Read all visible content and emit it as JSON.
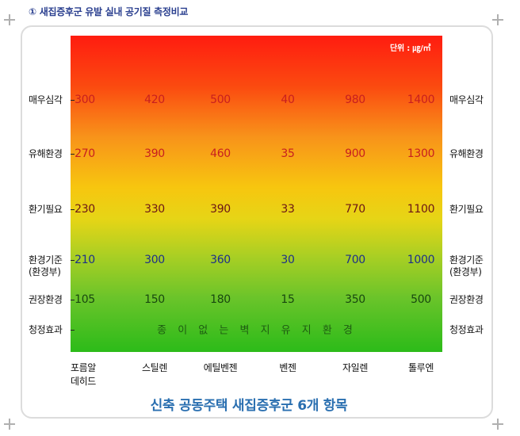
{
  "heading": "① 새집증후군 유발 실내 공기질 측정비교",
  "chart_data": {
    "type": "table",
    "unit": "단위 : ㎍/㎥",
    "title": "신축 공동주택 새집증후군 6개 항목",
    "categories": [
      "포름알\n데히드",
      "스틸렌",
      "에틸벤젠",
      "벤젠",
      "자일렌",
      "톨루엔"
    ],
    "rows": [
      {
        "label": "매우심각",
        "color": "#c81f1f",
        "values": [
          "300",
          "420",
          "500",
          "40",
          "980",
          "1400"
        ]
      },
      {
        "label": "유해환경",
        "color": "#c81f1f",
        "values": [
          "270",
          "390",
          "460",
          "35",
          "900",
          "1300"
        ]
      },
      {
        "label": "환기필요",
        "color": "#6b1616",
        "values": [
          "230",
          "330",
          "390",
          "33",
          "770",
          "1100"
        ]
      },
      {
        "label": "환경기준\n(환경부)",
        "color": "#1d2f8a",
        "values": [
          "210",
          "300",
          "360",
          "30",
          "700",
          "1000"
        ]
      },
      {
        "label": "권장환경",
        "color": "#18480f",
        "values": [
          "105",
          "150",
          "180",
          "15",
          "350",
          "500"
        ]
      },
      {
        "label": "청정효과",
        "color": "#1e5b12",
        "values": []
      }
    ],
    "annotation": "종이없는벽지유지환경"
  }
}
